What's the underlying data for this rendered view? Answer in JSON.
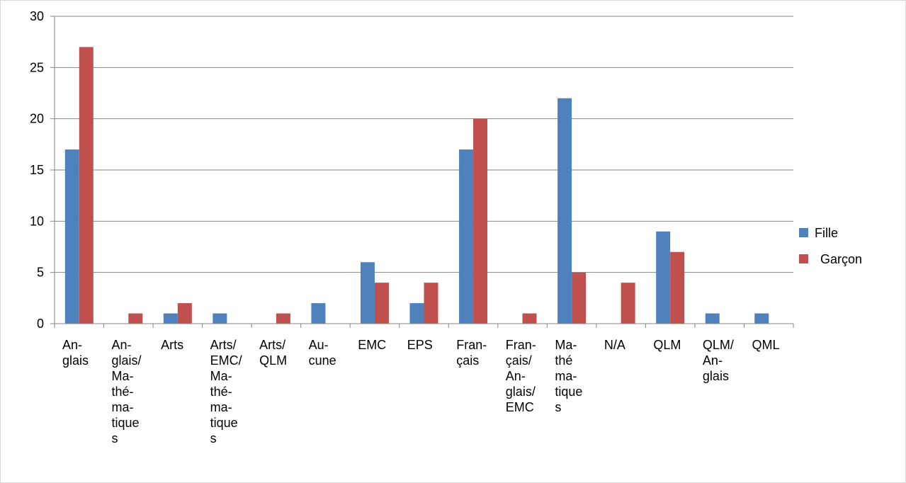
{
  "chart_data": {
    "type": "bar",
    "title": "",
    "xlabel": "",
    "ylabel": "",
    "ylim": [
      0,
      30
    ],
    "yticks": [
      0,
      5,
      10,
      15,
      20,
      25,
      30
    ],
    "grid": true,
    "legend_position": "right",
    "categories": [
      [
        "An-",
        "glais"
      ],
      [
        "An-",
        "glais/",
        "Ma-",
        "thé-",
        "ma-",
        "tique",
        "s"
      ],
      [
        "Arts"
      ],
      [
        "Arts/",
        "EMC/",
        "Ma-",
        "thé-",
        "ma-",
        "tique",
        "s"
      ],
      [
        "Arts/",
        "QLM"
      ],
      [
        "Au-",
        "cune"
      ],
      [
        "EMC"
      ],
      [
        "EPS"
      ],
      [
        "Fran-",
        "çais"
      ],
      [
        "Fran-",
        "çais/",
        "An-",
        "glais/",
        "EMC"
      ],
      [
        "Ma-",
        "thé",
        "ma-",
        "tique",
        "s"
      ],
      [
        "N/A"
      ],
      [
        "QLM"
      ],
      [
        "QLM/",
        "An-",
        "glais"
      ],
      [
        "QML"
      ]
    ],
    "series": [
      {
        "name": "Fille",
        "color": "#4F81BD",
        "values": [
          17,
          0,
          1,
          1,
          0,
          2,
          6,
          2,
          17,
          0,
          22,
          0,
          9,
          1,
          1
        ]
      },
      {
        "name": "Garçon",
        "color": "#C0504D",
        "values": [
          27,
          1,
          2,
          0,
          1,
          0,
          4,
          4,
          20,
          1,
          5,
          4,
          7,
          0,
          0
        ]
      }
    ]
  }
}
